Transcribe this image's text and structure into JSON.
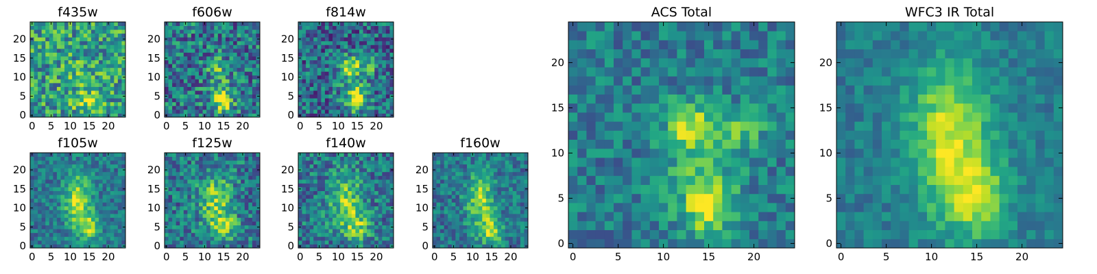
{
  "chart_data": [
    {
      "type": "heatmap",
      "title": "f435w",
      "xticks": [
        "0",
        "5",
        "10",
        "15",
        "20"
      ],
      "yticks": [
        "0",
        "5",
        "10",
        "15",
        "20"
      ],
      "grid_size": 25,
      "colormap": "viridis",
      "blobs": [
        {
          "x": 15,
          "y": 3.5,
          "sx": 2.5,
          "sy": 1.5,
          "amp": 0.35
        },
        {
          "x": 13,
          "y": 10,
          "sx": 3,
          "sy": 4,
          "amp": 0.12
        }
      ],
      "base": 0.55,
      "noise": 0.3,
      "seed": 11
    },
    {
      "type": "heatmap",
      "title": "f606w",
      "xticks": [
        "0",
        "5",
        "10",
        "15",
        "20"
      ],
      "yticks": [
        "0",
        "5",
        "10",
        "15",
        "20"
      ],
      "grid_size": 25,
      "colormap": "viridis",
      "blobs": [
        {
          "x": 15,
          "y": 3.5,
          "sx": 2,
          "sy": 2,
          "amp": 0.45
        },
        {
          "x": 13,
          "y": 13,
          "sx": 1.5,
          "sy": 1.5,
          "amp": 0.3
        },
        {
          "x": 14,
          "y": 8,
          "sx": 2,
          "sy": 4,
          "amp": 0.2
        }
      ],
      "base": 0.4,
      "noise": 0.3,
      "seed": 23
    },
    {
      "type": "heatmap",
      "title": "f814w",
      "xticks": [
        "0",
        "5",
        "10",
        "15",
        "20"
      ],
      "yticks": [
        "0",
        "5",
        "10",
        "15",
        "20"
      ],
      "grid_size": 25,
      "colormap": "viridis",
      "blobs": [
        {
          "x": 15,
          "y": 4,
          "sx": 2,
          "sy": 2,
          "amp": 0.5
        },
        {
          "x": 13,
          "y": 13,
          "sx": 1.8,
          "sy": 1.8,
          "amp": 0.45
        },
        {
          "x": 18,
          "y": 13,
          "sx": 1.5,
          "sy": 1.5,
          "amp": 0.3
        },
        {
          "x": 14,
          "y": 8,
          "sx": 2.5,
          "sy": 4,
          "amp": 0.25
        }
      ],
      "base": 0.35,
      "noise": 0.28,
      "seed": 37
    },
    {
      "type": "heatmap",
      "title": "f105w",
      "xticks": [
        "0",
        "5",
        "10",
        "15",
        "20"
      ],
      "yticks": [
        "0",
        "5",
        "10",
        "15",
        "20"
      ],
      "grid_size": 25,
      "colormap": "viridis",
      "blobs": [
        {
          "x": 12,
          "y": 12,
          "sx": 2.5,
          "sy": 5,
          "amp": 0.5
        },
        {
          "x": 15,
          "y": 5,
          "sx": 2,
          "sy": 2.5,
          "amp": 0.4
        }
      ],
      "base": 0.4,
      "noise": 0.18,
      "seed": 41
    },
    {
      "type": "heatmap",
      "title": "f125w",
      "xticks": [
        "0",
        "5",
        "10",
        "15",
        "20"
      ],
      "yticks": [
        "0",
        "5",
        "10",
        "15",
        "20"
      ],
      "grid_size": 25,
      "colormap": "viridis",
      "blobs": [
        {
          "x": 13,
          "y": 12,
          "sx": 3,
          "sy": 5,
          "amp": 0.4
        },
        {
          "x": 15,
          "y": 5,
          "sx": 2.5,
          "sy": 2.5,
          "amp": 0.3
        }
      ],
      "base": 0.4,
      "noise": 0.25,
      "seed": 53
    },
    {
      "type": "heatmap",
      "title": "f140w",
      "xticks": [
        "0",
        "5",
        "10",
        "15",
        "20"
      ],
      "yticks": [
        "0",
        "5",
        "10",
        "15",
        "20"
      ],
      "grid_size": 25,
      "colormap": "viridis",
      "blobs": [
        {
          "x": 12,
          "y": 12,
          "sx": 3,
          "sy": 5,
          "amp": 0.4
        },
        {
          "x": 15,
          "y": 5,
          "sx": 2.5,
          "sy": 2.5,
          "amp": 0.35
        }
      ],
      "base": 0.4,
      "noise": 0.24,
      "seed": 67
    },
    {
      "type": "heatmap",
      "title": "f160w",
      "xticks": [
        "0",
        "5",
        "10",
        "15",
        "20"
      ],
      "yticks": [
        "0",
        "5",
        "10",
        "15",
        "20"
      ],
      "grid_size": 25,
      "colormap": "viridis",
      "blobs": [
        {
          "x": 12,
          "y": 12,
          "sx": 2.5,
          "sy": 5,
          "amp": 0.45
        },
        {
          "x": 15,
          "y": 4,
          "sx": 2,
          "sy": 2.5,
          "amp": 0.45
        }
      ],
      "base": 0.4,
      "noise": 0.2,
      "seed": 79
    },
    {
      "type": "heatmap",
      "title": "ACS Total",
      "xticks": [
        "0",
        "5",
        "10",
        "15",
        "20"
      ],
      "yticks": [
        "0",
        "5",
        "10",
        "15",
        "20"
      ],
      "grid_size": 25,
      "colormap": "viridis",
      "blobs": [
        {
          "x": 15,
          "y": 4,
          "sx": 2,
          "sy": 2,
          "amp": 0.5
        },
        {
          "x": 13,
          "y": 13,
          "sx": 1.8,
          "sy": 1.8,
          "amp": 0.4
        },
        {
          "x": 19,
          "y": 13,
          "sx": 1.5,
          "sy": 1.5,
          "amp": 0.3
        },
        {
          "x": 14,
          "y": 9,
          "sx": 3,
          "sy": 4,
          "amp": 0.2
        }
      ],
      "base": 0.42,
      "noise": 0.18,
      "seed": 97
    },
    {
      "type": "heatmap",
      "title": "WFC3 IR Total",
      "xticks": [
        "0",
        "5",
        "10",
        "15",
        "20"
      ],
      "yticks": [
        "0",
        "5",
        "10",
        "15",
        "20"
      ],
      "grid_size": 25,
      "colormap": "viridis",
      "blobs": [
        {
          "x": 12,
          "y": 12,
          "sx": 3,
          "sy": 5.5,
          "amp": 0.5
        },
        {
          "x": 15,
          "y": 5,
          "sx": 2.5,
          "sy": 3,
          "amp": 0.4
        }
      ],
      "base": 0.42,
      "noise": 0.12,
      "seed": 113
    }
  ]
}
